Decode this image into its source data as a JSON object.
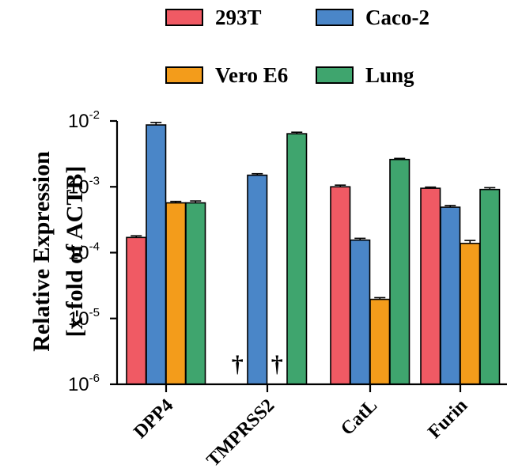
{
  "chart_data": {
    "type": "bar",
    "yscale": "log",
    "ylabel_line1": "Relative Expression",
    "ylabel_line2": "[x-fold of ACTB]",
    "ylim": [
      1e-06,
      0.01
    ],
    "yticks": [
      {
        "value": 1e-06,
        "base": "10",
        "exp": "-6"
      },
      {
        "value": 1e-05,
        "base": "10",
        "exp": "-5"
      },
      {
        "value": 0.0001,
        "base": "10",
        "exp": "-4"
      },
      {
        "value": 0.001,
        "base": "10",
        "exp": "-3"
      },
      {
        "value": 0.01,
        "base": "10",
        "exp": "-2"
      }
    ],
    "categories": [
      "DPP4",
      "TMPRSS2",
      "CatL",
      "Furin"
    ],
    "legend_placement": "top",
    "series": [
      {
        "name": "293T",
        "color": "#f05a64",
        "values": [
          0.00017,
          null,
          0.001,
          0.00095
        ],
        "errors": [
          1e-05,
          null,
          6e-05,
          4e-05
        ]
      },
      {
        "name": "Caco-2",
        "color": "#4a86c8",
        "values": [
          0.0087,
          0.0015,
          0.000155,
          0.00049
        ],
        "errors": [
          0.0008,
          8e-05,
          1e-05,
          3e-05
        ]
      },
      {
        "name": "Vero E6",
        "color": "#f39c1b",
        "values": [
          0.00057,
          null,
          1.95e-05,
          0.000138
        ],
        "errors": [
          3e-05,
          null,
          1.2e-06,
          1.5e-05
        ]
      },
      {
        "name": "Lung",
        "color": "#3fa56e",
        "values": [
          0.00057,
          0.0064,
          0.0026,
          0.00091
        ],
        "errors": [
          4e-05,
          0.00035,
          0.0001,
          6e-05
        ]
      }
    ],
    "annotations": [
      {
        "text": "†",
        "category": "TMPRSS2",
        "series": "293T"
      },
      {
        "text": "†",
        "category": "TMPRSS2",
        "series": "Vero E6"
      }
    ]
  }
}
